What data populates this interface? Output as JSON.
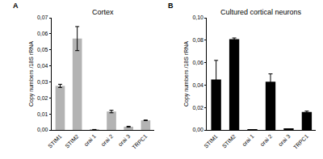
{
  "chart_data": [
    {
      "type": "bar",
      "title": "Cortex",
      "annotations": [
        "A"
      ],
      "y_label": "Copy numbers /18S rRNA",
      "categories": [
        "STIM1",
        "STIM2",
        "orai 1",
        "orai 2",
        "orai 3",
        "TRPC1"
      ],
      "values": [
        0.0275,
        0.057,
        0.0002,
        0.0115,
        0.002,
        0.006
      ],
      "errors": [
        0.001,
        0.0075,
        0.0001,
        0.0008,
        0.0003,
        0.0002
      ],
      "color": "#b3b3b3",
      "ylim": [
        0,
        0.07
      ],
      "yticks": [
        {
          "value": 0,
          "label": "0,00"
        },
        {
          "value": 0.01,
          "label": "0,01"
        },
        {
          "value": 0.02,
          "label": "0,02"
        },
        {
          "value": 0.03,
          "label": "0,03"
        },
        {
          "value": 0.04,
          "label": "0,04"
        },
        {
          "value": 0.05,
          "label": "0,05"
        },
        {
          "value": 0.06,
          "label": "0,06"
        },
        {
          "value": 0.07,
          "label": "0,07"
        }
      ],
      "grid": false
    },
    {
      "type": "bar",
      "title": "Cultured cortical neurons",
      "annotations": [
        "B"
      ],
      "y_label": "Copy numbers /18S rRNA",
      "categories": [
        "STIM1",
        "STIM2",
        "orai 1",
        "orai 2",
        "orai 3",
        "TRPC1"
      ],
      "values": [
        0.045,
        0.081,
        0.0002,
        0.043,
        0.0008,
        0.016
      ],
      "errors": [
        0.017,
        0.001,
        0.0001,
        0.007,
        0.0002,
        0.0008
      ],
      "color": "#000000",
      "ylim": [
        0,
        0.1
      ],
      "yticks": [
        {
          "value": 0,
          "label": "0,00"
        },
        {
          "value": 0.02,
          "label": "0,02"
        },
        {
          "value": 0.04,
          "label": "0,04"
        },
        {
          "value": 0.06,
          "label": "0,06"
        },
        {
          "value": 0.08,
          "label": "0,08"
        },
        {
          "value": 0.1,
          "label": "0,10"
        }
      ],
      "grid": false
    }
  ]
}
